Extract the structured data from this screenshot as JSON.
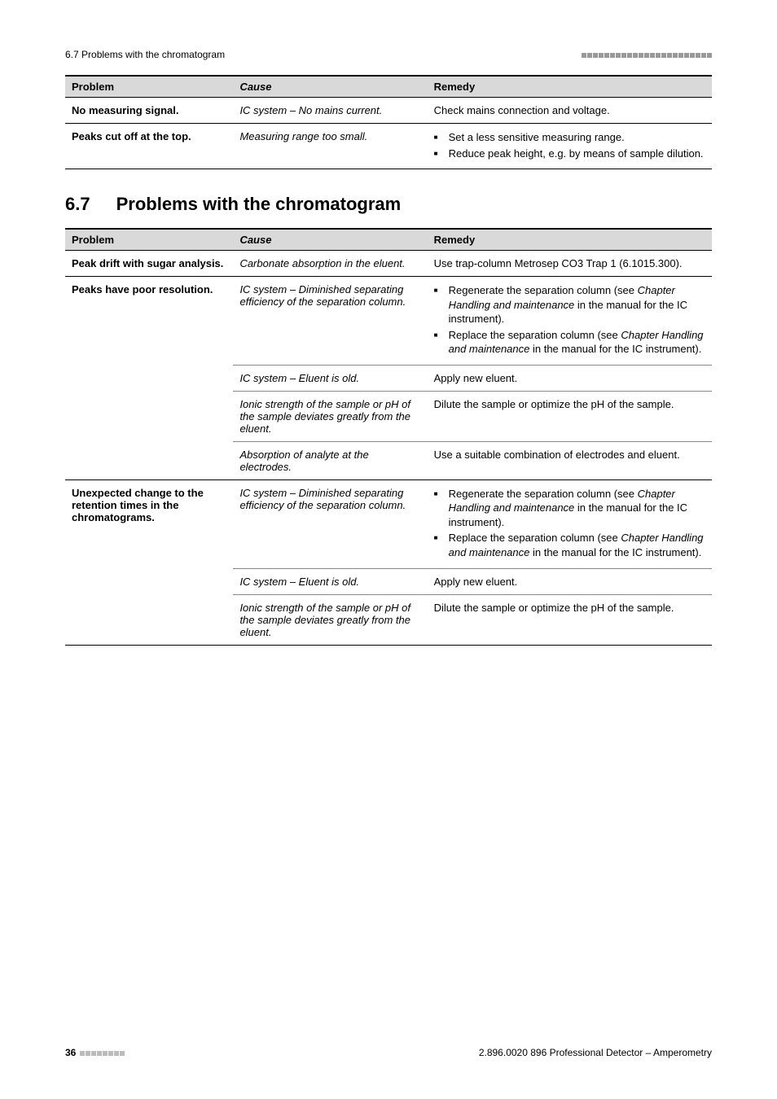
{
  "header": {
    "left": "6.7 Problems with the chromatogram"
  },
  "section": {
    "number": "6.7",
    "title": "Problems with the chromatogram"
  },
  "table1": {
    "head": {
      "c1": "Problem",
      "c2": "Cause",
      "c3": "Remedy"
    },
    "rows": [
      {
        "problem": "No measuring signal.",
        "cause": "IC system – No mains current.",
        "remedy_text": "Check mains connection and voltage."
      },
      {
        "problem": "Peaks cut off at the top.",
        "cause": "Measuring range too small.",
        "remedy_bullets": [
          "Set a less sensitive measuring range.",
          "Reduce peak height, e.g. by means of sample dilution."
        ]
      }
    ]
  },
  "table2": {
    "head": {
      "c1": "Problem",
      "c2": "Cause",
      "c3": "Remedy"
    },
    "groups": [
      {
        "problem": "Peak drift with sugar analysis.",
        "sub": [
          {
            "cause": "Carbonate absorption in the eluent.",
            "remedy_text": "Use trap-column Metrosep CO3 Trap 1 (6.1015.300)."
          }
        ]
      },
      {
        "problem": "Peaks have poor resolution.",
        "sub": [
          {
            "cause": "IC system – Diminished separating efficiency of the separation column.",
            "remedy_bullets": [
              "Regenerate the separation column (see <span class=\"italic\">Chapter Handling and maintenance</span> in the manual for the IC instrument).",
              "Replace the separation column (see <span class=\"italic\">Chapter Handling and maintenance</span> in the manual for the IC instrument)."
            ]
          },
          {
            "cause": "IC system – Eluent is old.",
            "remedy_text": "Apply new eluent."
          },
          {
            "cause": "Ionic strength of the sample or pH of the sample deviates greatly from the eluent.",
            "remedy_text": "Dilute the sample or optimize the pH of the sample."
          },
          {
            "cause": "Absorption of analyte at the electrodes.",
            "remedy_text": "Use a suitable combination of electrodes and eluent."
          }
        ]
      },
      {
        "problem": "Unexpected change to the retention times in the chromatograms.",
        "sub": [
          {
            "cause": "IC system – Diminished separating efficiency of the separation column.",
            "remedy_bullets": [
              "Regenerate the separation column (see <span class=\"italic\">Chapter Handling and maintenance</span> in the manual for the IC instrument).",
              "Replace the separation column (see <span class=\"italic\">Chapter Handling and maintenance</span> in the manual for the IC instrument)."
            ]
          },
          {
            "cause": "IC system – Eluent is old.",
            "remedy_text": "Apply new eluent."
          },
          {
            "cause": "Ionic strength of the sample or pH of the sample deviates greatly from the eluent.",
            "remedy_text": "Dilute the sample or optimize the pH of the sample."
          }
        ]
      }
    ]
  },
  "footer": {
    "page": "36",
    "right": "2.896.0020 896 Professional Detector – Amperometry"
  }
}
